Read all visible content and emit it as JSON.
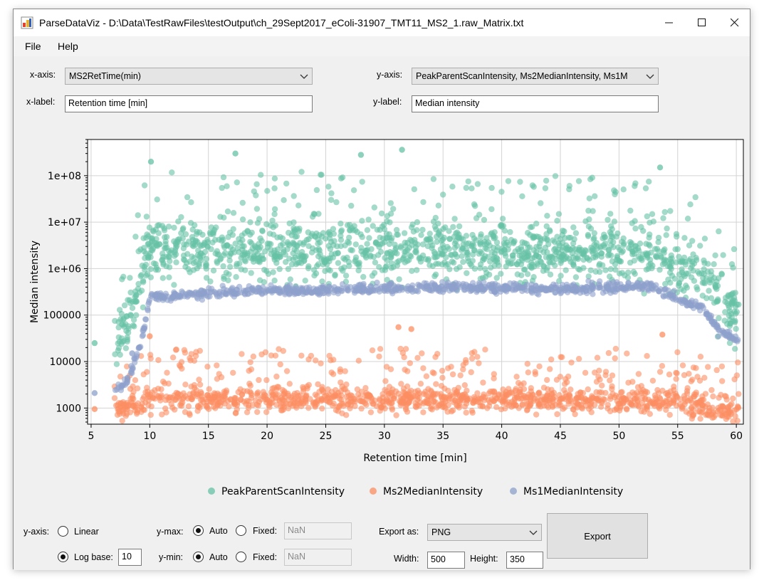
{
  "window": {
    "title": "ParseDataViz - D:\\Data\\TestRawFiles\\testOutput\\ch_29Sept2017_eColi-31907_TMT11_MS2_1.raw_Matrix.txt",
    "minimize": "—",
    "maximize": "☐",
    "close": "✕"
  },
  "menu": {
    "file": "File",
    "help": "Help"
  },
  "controls": {
    "xaxis_label": "x-axis:",
    "xaxis_value": "MS2RetTime(min)",
    "yaxis_label": "y-axis:",
    "yaxis_value": "PeakParentScanIntensity, Ms2MedianIntensity, Ms1M",
    "xlabel_label": "x-label:",
    "xlabel_value": "Retention time [min]",
    "ylabel_label": "y-label:",
    "ylabel_value": "Median intensity"
  },
  "bottom": {
    "yaxis_label": "y-axis:",
    "linear": "Linear",
    "logbase": "Log base:",
    "logbase_value": "10",
    "ymax_label": "y-max:",
    "ymin_label": "y-min:",
    "auto": "Auto",
    "fixed": "Fixed:",
    "ymax_fixed_value": "NaN",
    "ymin_fixed_value": "NaN",
    "export_label": "Export as:",
    "export_value": "PNG",
    "width_label": "Width:",
    "width_value": "500",
    "height_label": "Height:",
    "height_value": "350",
    "export_button": "Export",
    "scale_selected": "log",
    "ymax_selected": "auto",
    "ymin_selected": "auto"
  },
  "chart_data": {
    "type": "scatter",
    "xlabel": "Retention time [min]",
    "ylabel": "Median intensity",
    "xlim": [
      4.7,
      60.6
    ],
    "ylim": [
      450,
      600000000
    ],
    "yscale": "log",
    "grid": true,
    "legend_position": "bottom",
    "xticks": [
      5,
      10,
      15,
      20,
      25,
      30,
      35,
      40,
      45,
      50,
      55,
      60
    ],
    "yticks": [
      1000,
      10000,
      100000,
      1000000,
      10000000,
      100000000
    ],
    "ytick_labels": [
      "1000",
      "10000",
      "100000",
      "1e+06",
      "1e+07",
      "1e+08"
    ],
    "series": [
      {
        "name": "PeakParentScanIntensity",
        "color": "#66c2a5",
        "profile_x": [
          5.3,
          7.0,
          8.0,
          8.5,
          9.0,
          9.5,
          10,
          15,
          20,
          25,
          30,
          35,
          40,
          45,
          50,
          53,
          55,
          57,
          58.5,
          60
        ],
        "profile_median": [
          25000,
          30000,
          40000,
          80000,
          400000,
          1500000,
          2500000,
          2500000,
          2500000,
          2500000,
          2500000,
          2500000,
          2500000,
          2500000,
          2500000,
          2500000,
          1200000,
          800000,
          300000,
          100000
        ],
        "notable_points": [
          [
            5.3,
            25000
          ],
          [
            10.1,
            200000000
          ],
          [
            17.3,
            300000000
          ],
          [
            28.0,
            280000000
          ],
          [
            31.5,
            360000000
          ],
          [
            53.5,
            150000000
          ]
        ]
      },
      {
        "name": "Ms2MedianIntensity",
        "color": "#fc8d62",
        "profile_x": [
          5.3,
          7.0,
          9.0,
          10,
          15,
          20,
          25,
          30,
          35,
          40,
          45,
          50,
          55,
          57,
          58,
          60
        ],
        "profile_median": [
          950,
          950,
          1000,
          1600,
          1500,
          1500,
          1500,
          1500,
          1500,
          1500,
          1500,
          1500,
          1400,
          1200,
          1000,
          900
        ],
        "notable_points": [
          [
            5.3,
            950
          ],
          [
            31.2,
            55000
          ],
          [
            32.3,
            50000
          ],
          [
            10.0,
            35000
          ],
          [
            53.7,
            38000
          ]
        ]
      },
      {
        "name": "Ms1MedianIntensity",
        "color": "#8da0cb",
        "profile_x": [
          5.3,
          7.0,
          8.0,
          9.0,
          9.5,
          10,
          12,
          15,
          20,
          25,
          30,
          35,
          40,
          45,
          50,
          53,
          55,
          57,
          58.5,
          60
        ],
        "profile_median": [
          2100,
          2400,
          3500,
          15000,
          50000,
          250000,
          250000,
          300000,
          330000,
          350000,
          380000,
          400000,
          380000,
          370000,
          400000,
          420000,
          220000,
          150000,
          50000,
          30000
        ],
        "notable_points": [
          [
            5.3,
            2100
          ],
          [
            8.5,
            15000
          ]
        ]
      }
    ]
  }
}
